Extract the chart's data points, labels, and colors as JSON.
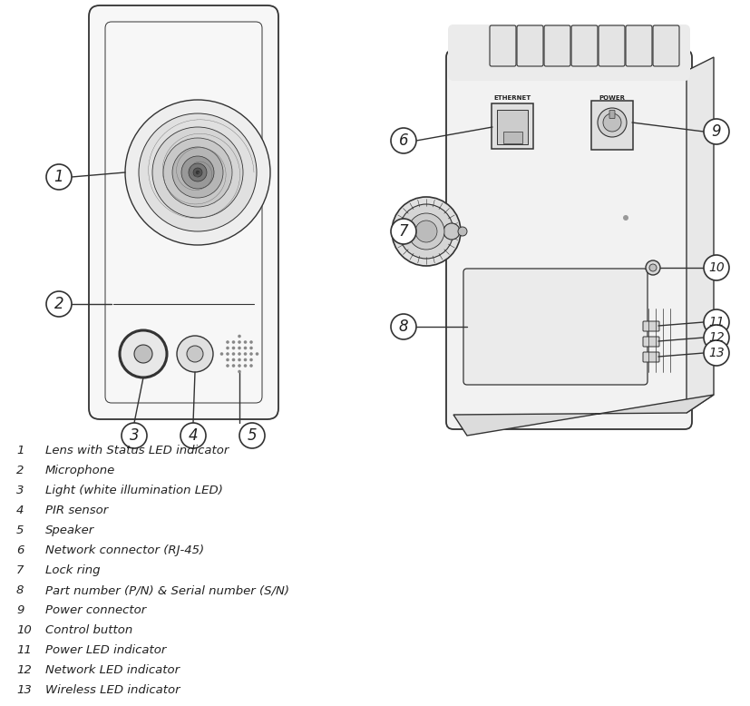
{
  "background_color": "#ffffff",
  "line_color": "#333333",
  "text_color": "#222222",
  "legend_items": [
    {
      "num": "1",
      "text": "Lens with Status LED indicator"
    },
    {
      "num": "2",
      "text": "Microphone"
    },
    {
      "num": "3",
      "text": "Light (white illumination LED)"
    },
    {
      "num": "4",
      "text": "PIR sensor"
    },
    {
      "num": "5",
      "text": "Speaker"
    },
    {
      "num": "6",
      "text": "Network connector (RJ-45)"
    },
    {
      "num": "7",
      "text": "Lock ring"
    },
    {
      "num": "8",
      "text": "Part number (P/N) & Serial number (S/N)"
    },
    {
      "num": "9",
      "text": "Power connector"
    },
    {
      "num": "10",
      "text": "Control button"
    },
    {
      "num": "11",
      "text": "Power LED indicator"
    },
    {
      "num": "12",
      "text": "Network LED indicator"
    },
    {
      "num": "13",
      "text": "Wireless LED indicator"
    }
  ],
  "fig_width": 8.27,
  "fig_height": 7.78,
  "dpi": 100
}
